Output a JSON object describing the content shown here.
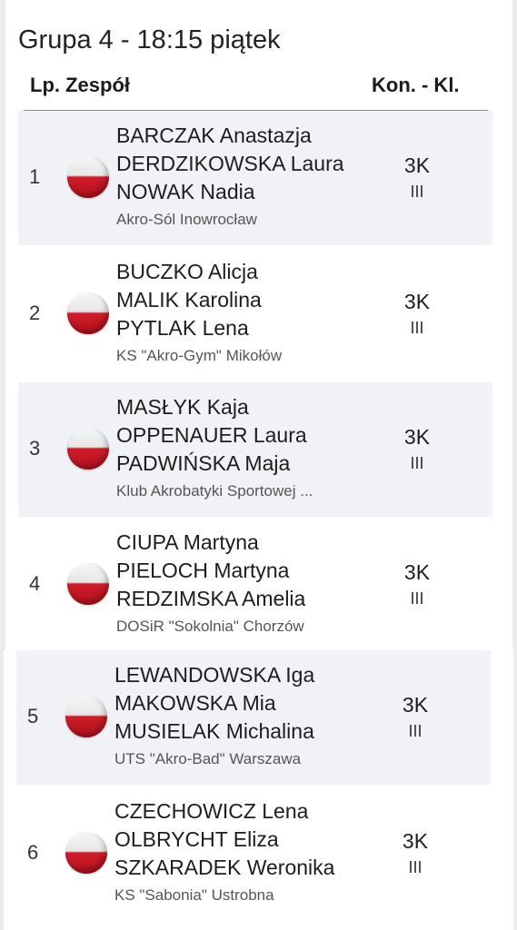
{
  "title": "Grupa 4 - 18:15 piątek",
  "header": {
    "lp_zespol": "Lp. Zespół",
    "kon_kl": "Kon. - Kl."
  },
  "teams": [
    {
      "lp": "1",
      "names": [
        "BARCZAK Anastazja",
        "DERDZIKOWSKA Laura",
        "NOWAK Nadia"
      ],
      "club": "Akro-Sól Inowrocław",
      "kon": "3K",
      "kl": "III",
      "flag": "poland-flag-icon"
    },
    {
      "lp": "2",
      "names": [
        "BUCZKO Alicja",
        "MALIK Karolina",
        "PYTLAK Lena"
      ],
      "club": "KS \"Akro-Gym\" Mikołów",
      "kon": "3K",
      "kl": "III",
      "flag": "poland-flag-icon"
    },
    {
      "lp": "3",
      "names": [
        "MASŁYK Kaja",
        "OPPENAUER Laura",
        "PADWIŃSKA Maja"
      ],
      "club": "Klub Akrobatyki Sportowej ...",
      "kon": "3K",
      "kl": "III",
      "flag": "poland-flag-icon"
    },
    {
      "lp": "4",
      "names": [
        "CIUPA Martyna",
        "PIELOCH Martyna",
        "REDZIMSKA Amelia"
      ],
      "club": "DOSiR \"Sokolnia\" Chorzów",
      "kon": "3K",
      "kl": "III",
      "flag": "poland-flag-icon"
    },
    {
      "lp": "5",
      "names": [
        "LEWANDOWSKA Iga",
        "MAKOWSKA Mia",
        "MUSIELAK Michalina"
      ],
      "club": "UTS \"Akro-Bad\" Warszawa",
      "kon": "3K",
      "kl": "III",
      "flag": "poland-flag-icon"
    },
    {
      "lp": "6",
      "names": [
        "CZECHOWICZ Lena",
        "OLBRYCHT Eliza",
        "SZKARADEK Weronika"
      ],
      "club": "KS \"Sabonia\" Ustrobna",
      "kon": "3K",
      "kl": "III",
      "flag": "poland-flag-icon"
    }
  ],
  "colors": {
    "row_shade": "#f1f2f7",
    "flag_red": "#d01e2a",
    "flag_white": "#f7f7f7"
  }
}
